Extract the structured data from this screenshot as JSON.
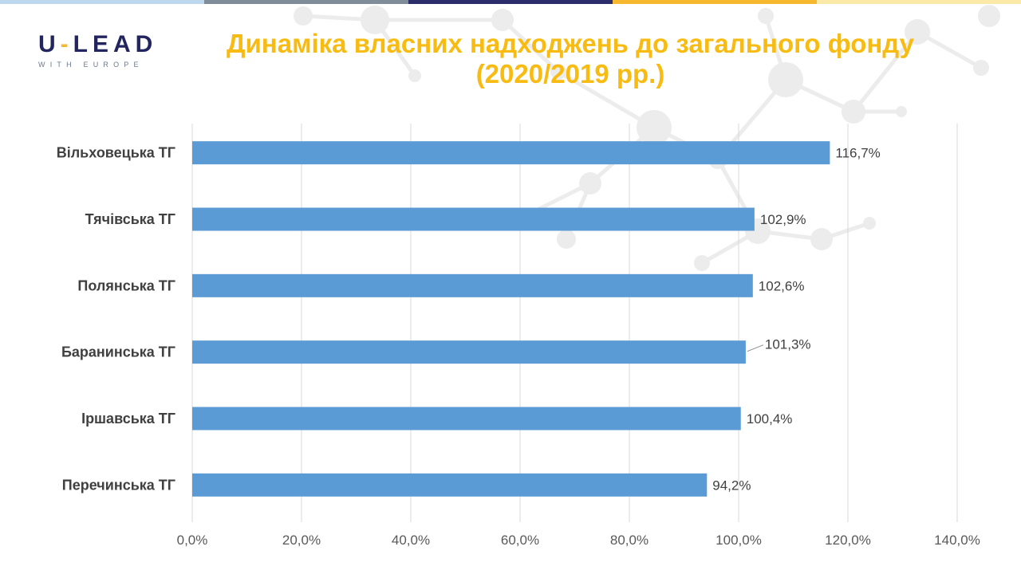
{
  "logo": {
    "main_prefix": "U",
    "main_dash": "-",
    "main_suffix": "LEAD",
    "subtitle": "WITH EUROPE"
  },
  "title_line1": "Динаміка власних надходжень до загального фонду",
  "title_line2": "(2020/2019 рр.)",
  "colors": {
    "bar": "#5b9bd5",
    "title": "#f7bb12",
    "logo": "#23255e",
    "grid": "#d9d9d9",
    "topbar": [
      "#bdd7ee",
      "#7f8c99",
      "#2c2d6b",
      "#f5b82e",
      "#fbe9a8"
    ]
  },
  "chart_data": {
    "type": "bar",
    "orientation": "horizontal",
    "categories": [
      "Вільховецька ТГ",
      "Тячівська ТГ",
      "Полянська ТГ",
      "Баранинська ТГ",
      "Іршавська ТГ",
      "Перечинська ТГ"
    ],
    "values": [
      116.7,
      102.9,
      102.6,
      101.3,
      100.4,
      94.2
    ],
    "value_labels": [
      "116,7%",
      "102,9%",
      "102,6%",
      "101,3%",
      "100,4%",
      "94,2%"
    ],
    "xlim": [
      0,
      140
    ],
    "x_ticks": [
      0,
      20,
      40,
      60,
      80,
      100,
      120,
      140
    ],
    "x_tick_labels": [
      "0,0%",
      "20,0%",
      "40,0%",
      "60,0%",
      "80,0%",
      "100,0%",
      "120,0%",
      "140,0%"
    ],
    "grid": true,
    "legend": "none"
  }
}
